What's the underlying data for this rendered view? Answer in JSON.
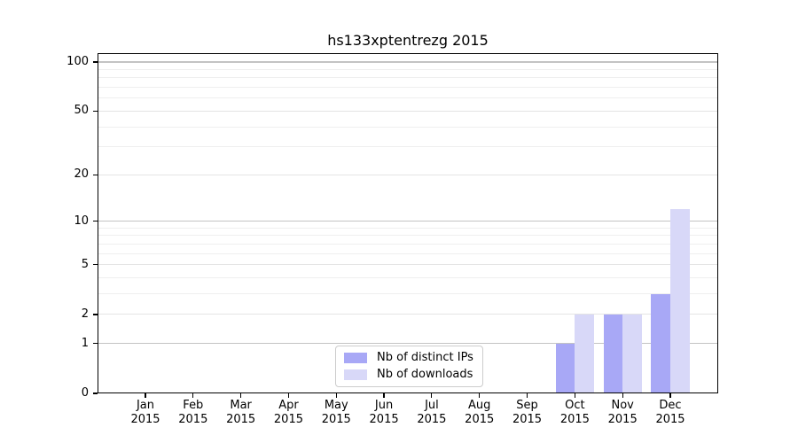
{
  "title": "hs133xptentrezg 2015",
  "colors": {
    "distinct_ips": "#a8a8f6",
    "downloads": "#d8d8f8",
    "grid_decade": "#c3c3c3",
    "grid_major": "#e4e4e4",
    "grid_minor": "#efefef",
    "spine": "#000000",
    "legend_border": "#cccccc"
  },
  "legend": {
    "entries": [
      {
        "label": "Nb of distinct IPs",
        "color_key": "distinct_ips"
      },
      {
        "label": "Nb of downloads",
        "color_key": "downloads"
      }
    ]
  },
  "chart_data": {
    "type": "bar",
    "title": "hs133xptentrezg 2015",
    "categories": [
      "Jan 2015",
      "Feb 2015",
      "Mar 2015",
      "Apr 2015",
      "May 2015",
      "Jun 2015",
      "Jul 2015",
      "Aug 2015",
      "Sep 2015",
      "Oct 2015",
      "Nov 2015",
      "Dec 2015"
    ],
    "series": [
      {
        "name": "Nb of distinct IPs",
        "color_key": "distinct_ips",
        "values": [
          0,
          0,
          0,
          0,
          0,
          0,
          0,
          0,
          0,
          1,
          2,
          3
        ]
      },
      {
        "name": "Nb of downloads",
        "color_key": "downloads",
        "values": [
          0,
          0,
          0,
          0,
          0,
          0,
          0,
          0,
          0,
          2,
          2,
          12
        ]
      }
    ],
    "yscale": "log1p",
    "ylim": [
      0,
      113
    ],
    "yticks_major": [
      0,
      1,
      2,
      5,
      10,
      20,
      50,
      100
    ],
    "yticks_minor": [
      3,
      4,
      6,
      7,
      8,
      9,
      30,
      40,
      60,
      70,
      80,
      90
    ],
    "yticks_decade": [
      1,
      10,
      100
    ],
    "grid": true,
    "legend_position": "lower center",
    "xlabel": "",
    "ylabel": ""
  }
}
